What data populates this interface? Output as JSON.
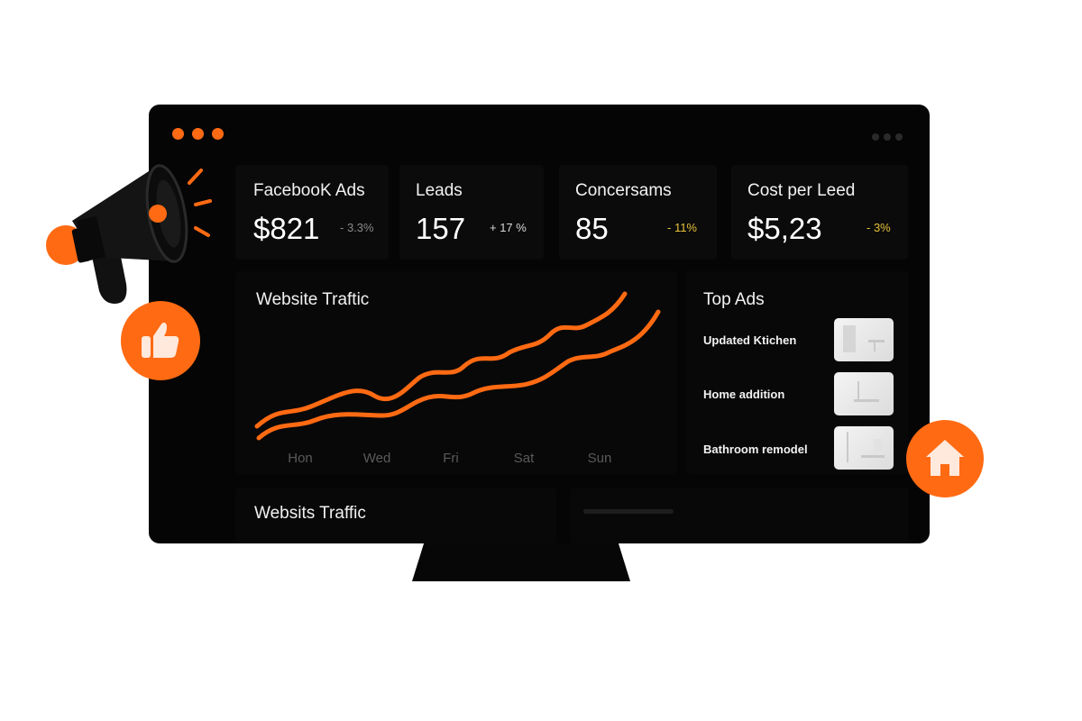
{
  "window": {
    "controls": [
      "dot",
      "dot",
      "dot"
    ]
  },
  "kpis": [
    {
      "title": "FacebooK Ads",
      "value": "$821",
      "delta": "- 3.3%",
      "delta_color": "#8a8a8a"
    },
    {
      "title": "Leads",
      "value": "157",
      "delta": "+ 17 %",
      "delta_color": "#d8d8d8"
    },
    {
      "title": "Concersams",
      "value": "85",
      "delta": "- 11%",
      "delta_color": "#e8c23a"
    },
    {
      "title": "Cost per Leed",
      "value": "$5,23",
      "delta": "- 3%",
      "delta_color": "#e8c23a"
    }
  ],
  "traffic": {
    "title": "Website Traftic",
    "ticks": [
      "Hon",
      "Wed",
      "Fri",
      "Sat",
      "Sun"
    ]
  },
  "top_ads": {
    "title": "Top Ads",
    "items": [
      {
        "label": "Updated Ktichen",
        "icon": "kitchen-thumbnail"
      },
      {
        "label": "Home addition",
        "icon": "home-addition-thumbnail"
      },
      {
        "label": "Bathroom remodel",
        "icon": "bathroom-thumbnail"
      }
    ]
  },
  "bottom": {
    "title": "Websits Traffic"
  },
  "colors": {
    "accent": "#ff6a13",
    "background": "#050505",
    "panel": "#0b0b0b"
  },
  "decorations": [
    "megaphone-icon",
    "thumbs-up-icon",
    "house-icon"
  ]
}
